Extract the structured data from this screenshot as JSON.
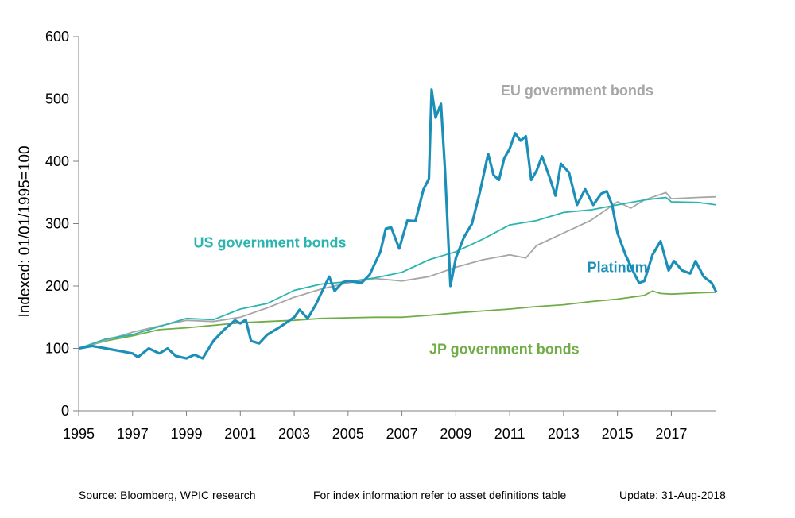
{
  "chart_data": {
    "type": "line",
    "ylabel": "Indexed: 01/01/1995=100",
    "xlabel": "",
    "xlim": [
      1995,
      2018.67
    ],
    "ylim": [
      0,
      600
    ],
    "x_ticks": [
      "1995",
      "1997",
      "1999",
      "2001",
      "2003",
      "2005",
      "2007",
      "2009",
      "2011",
      "2013",
      "2015",
      "2017"
    ],
    "y_ticks": [
      "0",
      "100",
      "200",
      "300",
      "400",
      "500",
      "600"
    ],
    "grid": false,
    "legend": "inline labels",
    "series": [
      {
        "name": "Platinum",
        "color": "#1b8fb8",
        "points": [
          [
            1995,
            100
          ],
          [
            1995.5,
            104
          ],
          [
            1996,
            100
          ],
          [
            1996.5,
            96
          ],
          [
            1997,
            92
          ],
          [
            1997.2,
            86
          ],
          [
            1997.6,
            100
          ],
          [
            1998,
            92
          ],
          [
            1998.3,
            100
          ],
          [
            1998.6,
            88
          ],
          [
            1999,
            84
          ],
          [
            1999.3,
            90
          ],
          [
            1999.6,
            84
          ],
          [
            2000,
            112
          ],
          [
            2000.4,
            130
          ],
          [
            2000.8,
            145
          ],
          [
            2001,
            140
          ],
          [
            2001.2,
            146
          ],
          [
            2001.4,
            112
          ],
          [
            2001.7,
            108
          ],
          [
            2002,
            122
          ],
          [
            2002.5,
            135
          ],
          [
            2003,
            150
          ],
          [
            2003.2,
            162
          ],
          [
            2003.5,
            148
          ],
          [
            2003.8,
            170
          ],
          [
            2004,
            188
          ],
          [
            2004.3,
            215
          ],
          [
            2004.5,
            192
          ],
          [
            2004.8,
            206
          ],
          [
            2005,
            208
          ],
          [
            2005.5,
            205
          ],
          [
            2005.8,
            218
          ],
          [
            2006.2,
            255
          ],
          [
            2006.4,
            292
          ],
          [
            2006.6,
            294
          ],
          [
            2006.9,
            260
          ],
          [
            2007.2,
            305
          ],
          [
            2007.5,
            304
          ],
          [
            2007.8,
            355
          ],
          [
            2008,
            372
          ],
          [
            2008.1,
            515
          ],
          [
            2008.25,
            470
          ],
          [
            2008.45,
            492
          ],
          [
            2008.6,
            385
          ],
          [
            2008.8,
            200
          ],
          [
            2009,
            245
          ],
          [
            2009.3,
            278
          ],
          [
            2009.6,
            300
          ],
          [
            2009.9,
            352
          ],
          [
            2010.2,
            412
          ],
          [
            2010.4,
            378
          ],
          [
            2010.6,
            370
          ],
          [
            2010.8,
            405
          ],
          [
            2011,
            420
          ],
          [
            2011.2,
            445
          ],
          [
            2011.4,
            433
          ],
          [
            2011.6,
            440
          ],
          [
            2011.8,
            370
          ],
          [
            2012,
            385
          ],
          [
            2012.2,
            408
          ],
          [
            2012.5,
            372
          ],
          [
            2012.7,
            345
          ],
          [
            2012.9,
            396
          ],
          [
            2013.2,
            382
          ],
          [
            2013.5,
            330
          ],
          [
            2013.8,
            355
          ],
          [
            2014.1,
            330
          ],
          [
            2014.4,
            348
          ],
          [
            2014.6,
            352
          ],
          [
            2014.8,
            330
          ],
          [
            2015,
            285
          ],
          [
            2015.3,
            250
          ],
          [
            2015.6,
            222
          ],
          [
            2015.8,
            205
          ],
          [
            2016,
            208
          ],
          [
            2016.3,
            250
          ],
          [
            2016.6,
            272
          ],
          [
            2016.9,
            225
          ],
          [
            2017.1,
            240
          ],
          [
            2017.4,
            225
          ],
          [
            2017.7,
            220
          ],
          [
            2017.9,
            240
          ],
          [
            2018.2,
            215
          ],
          [
            2018.5,
            205
          ],
          [
            2018.67,
            190
          ]
        ]
      },
      {
        "name": "US government bonds",
        "color": "#2ab5b0",
        "points": [
          [
            1995,
            100
          ],
          [
            1996,
            115
          ],
          [
            1997,
            122
          ],
          [
            1998,
            135
          ],
          [
            1999,
            148
          ],
          [
            2000,
            146
          ],
          [
            2001,
            163
          ],
          [
            2002,
            172
          ],
          [
            2003,
            193
          ],
          [
            2004,
            203
          ],
          [
            2005,
            207
          ],
          [
            2006,
            213
          ],
          [
            2007,
            222
          ],
          [
            2008,
            242
          ],
          [
            2009,
            255
          ],
          [
            2010,
            275
          ],
          [
            2011,
            298
          ],
          [
            2012,
            305
          ],
          [
            2013,
            318
          ],
          [
            2014,
            322
          ],
          [
            2015,
            330
          ],
          [
            2016,
            338
          ],
          [
            2016.8,
            342
          ],
          [
            2017,
            335
          ],
          [
            2018,
            334
          ],
          [
            2018.67,
            330
          ]
        ]
      },
      {
        "name": "EU government bonds",
        "color": "#a6a6a6",
        "points": [
          [
            1995,
            100
          ],
          [
            1996,
            113
          ],
          [
            1997,
            126
          ],
          [
            1998,
            136
          ],
          [
            1999,
            145
          ],
          [
            2000,
            143
          ],
          [
            2001,
            150
          ],
          [
            2002,
            165
          ],
          [
            2003,
            182
          ],
          [
            2004,
            195
          ],
          [
            2005,
            205
          ],
          [
            2006,
            212
          ],
          [
            2007,
            208
          ],
          [
            2008,
            215
          ],
          [
            2009,
            230
          ],
          [
            2010,
            242
          ],
          [
            2011,
            250
          ],
          [
            2011.6,
            245
          ],
          [
            2012,
            265
          ],
          [
            2013,
            285
          ],
          [
            2014,
            305
          ],
          [
            2015,
            335
          ],
          [
            2015.5,
            325
          ],
          [
            2016,
            338
          ],
          [
            2016.8,
            350
          ],
          [
            2017,
            340
          ],
          [
            2018,
            342
          ],
          [
            2018.67,
            343
          ]
        ]
      },
      {
        "name": "JP government bonds",
        "color": "#70ad47",
        "points": [
          [
            1995,
            100
          ],
          [
            1996,
            112
          ],
          [
            1997,
            120
          ],
          [
            1998,
            130
          ],
          [
            1999,
            133
          ],
          [
            2000,
            137
          ],
          [
            2001,
            141
          ],
          [
            2002,
            143
          ],
          [
            2003,
            145
          ],
          [
            2004,
            148
          ],
          [
            2005,
            149
          ],
          [
            2006,
            150
          ],
          [
            2007,
            150
          ],
          [
            2008,
            153
          ],
          [
            2009,
            157
          ],
          [
            2010,
            160
          ],
          [
            2011,
            163
          ],
          [
            2012,
            167
          ],
          [
            2013,
            170
          ],
          [
            2014,
            175
          ],
          [
            2015,
            179
          ],
          [
            2016,
            185
          ],
          [
            2016.3,
            192
          ],
          [
            2016.6,
            188
          ],
          [
            2017,
            187
          ],
          [
            2018,
            189
          ],
          [
            2018.67,
            190
          ]
        ]
      }
    ],
    "annotations": [
      {
        "text": "EU government bonds",
        "color": "#a6a6a6",
        "anchor_x": 2013.5,
        "anchor_y": 506,
        "align": "middle"
      },
      {
        "text": "US government bonds",
        "color": "#2ab5b0",
        "anchor_x": 2002.1,
        "anchor_y": 262,
        "align": "middle"
      },
      {
        "text": "Platinum",
        "color": "#1b8fb8",
        "anchor_x": 2015,
        "anchor_y": 222,
        "align": "middle"
      },
      {
        "text": "JP government bonds",
        "color": "#70ad47",
        "anchor_x": 2010.8,
        "anchor_y": 91,
        "align": "middle"
      }
    ]
  },
  "footer": {
    "source": "Source: Bloomberg, WPIC research",
    "note": "For index information refer to asset definitions table",
    "update": "Update: 31-Aug-2018"
  }
}
